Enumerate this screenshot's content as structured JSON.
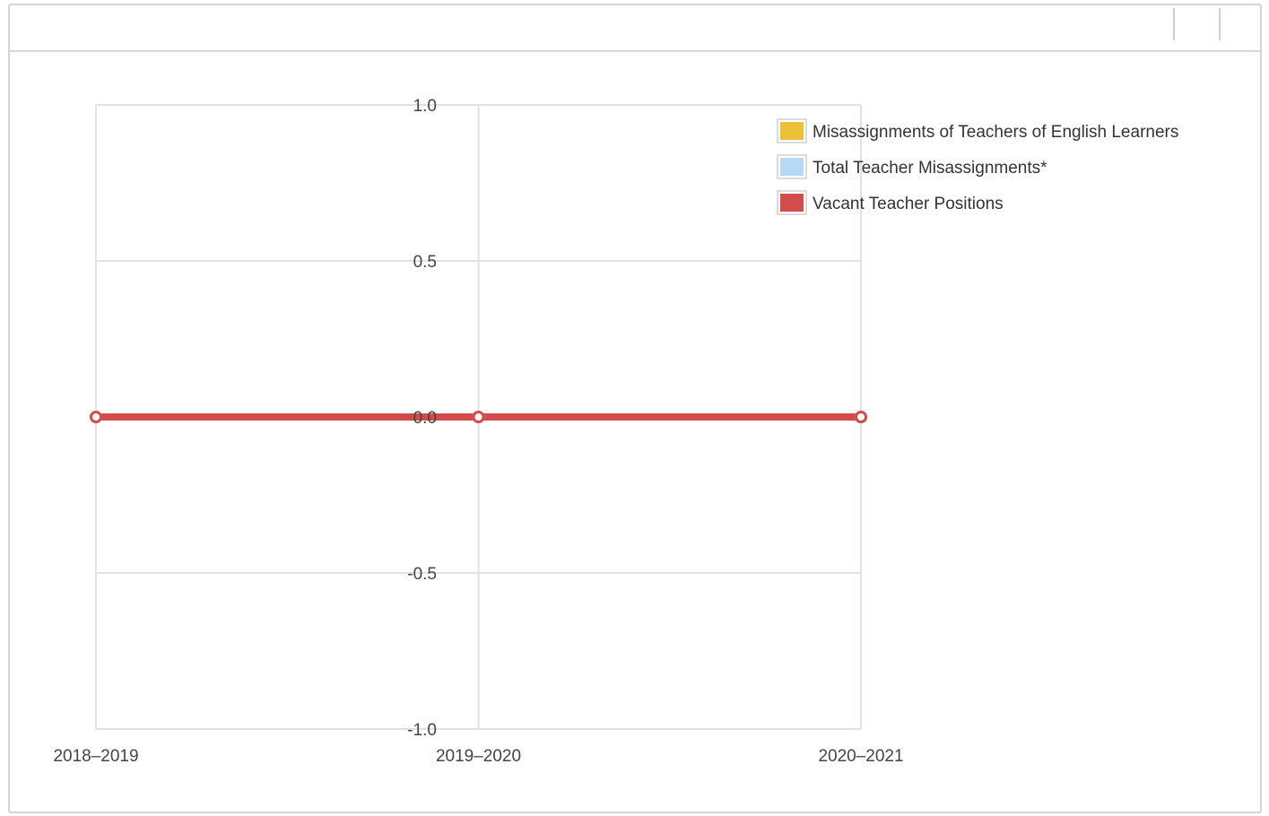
{
  "chart_data": {
    "type": "line",
    "categories": [
      "2018–2019",
      "2019–2020",
      "2020–2021"
    ],
    "ylim": [
      -1.0,
      1.0
    ],
    "yticks": [
      "1.0",
      "0.5",
      "0.0",
      "-0.5",
      "-1.0"
    ],
    "ytick_values": [
      1.0,
      0.5,
      0.0,
      -0.5,
      -1.0
    ],
    "grid": true,
    "legend_position": "top-right",
    "series": [
      {
        "name": "Misassignments of Teachers of English Learners",
        "color": "#ecc039",
        "values": [
          0,
          0,
          0
        ]
      },
      {
        "name": "Total Teacher Misassignments*",
        "color": "#b5d9f7",
        "values": [
          0,
          0,
          0
        ]
      },
      {
        "name": "Vacant Teacher Positions",
        "color": "#d24c4c",
        "values": [
          0,
          0,
          0
        ]
      }
    ],
    "title": "",
    "xlabel": "",
    "ylabel": ""
  }
}
